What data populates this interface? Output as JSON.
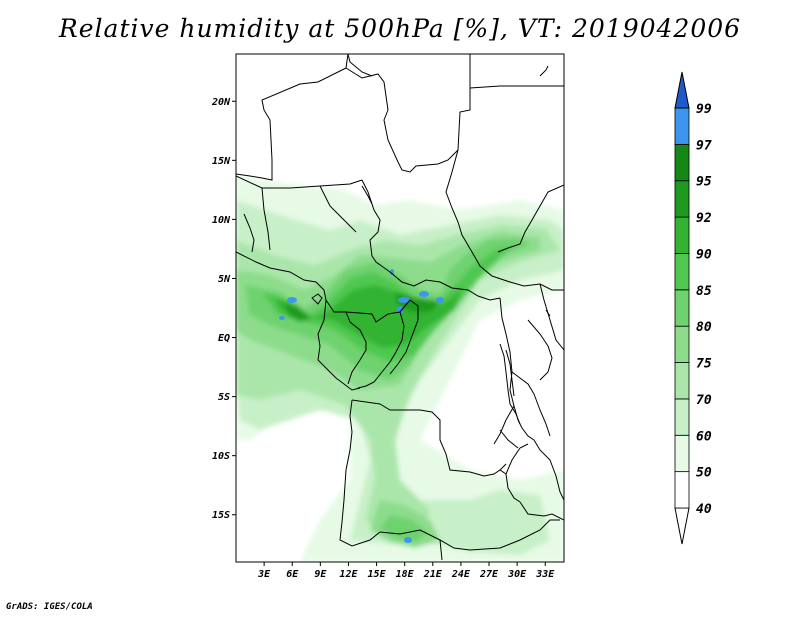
{
  "title": "Relative humidity at 500hPa [%], VT: 2019042006",
  "footer": "GrADS: IGES/COLA",
  "map": {
    "lat_range": [
      -19,
      24
    ],
    "lon_range": [
      0,
      35
    ],
    "y_ticks": [
      {
        "value": 20,
        "label": "20N"
      },
      {
        "value": 15,
        "label": "15N"
      },
      {
        "value": 10,
        "label": "10N"
      },
      {
        "value": 5,
        "label": "5N"
      },
      {
        "value": 0,
        "label": "EQ"
      },
      {
        "value": -5,
        "label": "5S"
      },
      {
        "value": -10,
        "label": "10S"
      },
      {
        "value": -15,
        "label": "15S"
      }
    ],
    "x_ticks": [
      {
        "value": 3,
        "label": "3E"
      },
      {
        "value": 6,
        "label": "6E"
      },
      {
        "value": 9,
        "label": "9E"
      },
      {
        "value": 12,
        "label": "12E"
      },
      {
        "value": 15,
        "label": "15E"
      },
      {
        "value": 18,
        "label": "18E"
      },
      {
        "value": 21,
        "label": "21E"
      },
      {
        "value": 24,
        "label": "24E"
      },
      {
        "value": 27,
        "label": "27E"
      },
      {
        "value": 30,
        "label": "30E"
      },
      {
        "value": 33,
        "label": "33E"
      }
    ]
  },
  "legend": {
    "levels": [
      {
        "label": "40",
        "color": "#ffffff"
      },
      {
        "label": "50",
        "color": "#e6fae6"
      },
      {
        "label": "60",
        "color": "#c8f0c8"
      },
      {
        "label": "70",
        "color": "#aae6aa"
      },
      {
        "label": "75",
        "color": "#8cdc8c"
      },
      {
        "label": "80",
        "color": "#6ed26e"
      },
      {
        "label": "85",
        "color": "#50c850"
      },
      {
        "label": "90",
        "color": "#32b432"
      },
      {
        "label": "92",
        "color": "#1e9b1e"
      },
      {
        "label": "95",
        "color": "#148714"
      },
      {
        "label": "97",
        "color": "#3c96f0"
      },
      {
        "label": "99",
        "color": "#2878dc"
      }
    ],
    "top_color": "#1e5ac8",
    "bottom_color": "#ffffff"
  }
}
